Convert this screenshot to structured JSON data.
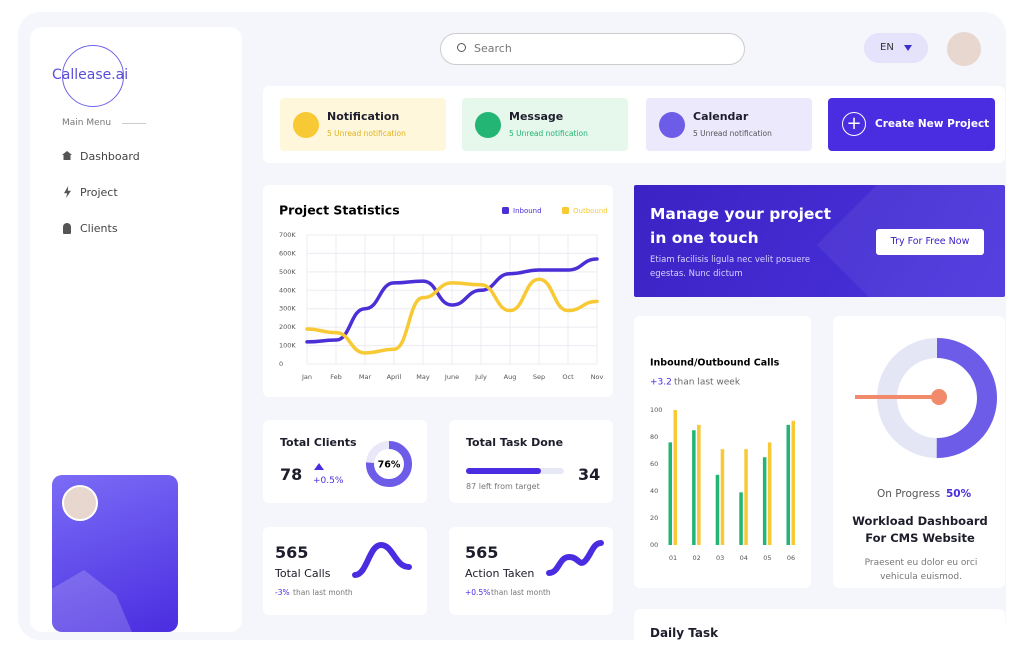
{
  "sidebar": {
    "brand": "Callease.ai",
    "menu_title": "Main Menu",
    "menu": [
      "Dashboard",
      "Project",
      "Clients"
    ]
  },
  "topbar": {
    "search_placeholder": "Search",
    "language": "EN"
  },
  "notifications": [
    {
      "title": "Notification",
      "subtitle": "5 Unread notification"
    },
    {
      "title": "Message",
      "subtitle": "5 Unread notification"
    },
    {
      "title": "Calendar",
      "subtitle": "5 Unread notification"
    }
  ],
  "create_button": "Create New Project",
  "project_statistics": {
    "type": "line",
    "title": "Project Statistics",
    "categories": [
      "Jan",
      "Feb",
      "Mar",
      "April",
      "May",
      "June",
      "July",
      "Aug",
      "Sep",
      "Oct",
      "Nov"
    ],
    "series": [
      {
        "name": "Inbound",
        "color": "#4b2fd6",
        "values": [
          120000,
          130000,
          300000,
          440000,
          450000,
          320000,
          400000,
          490000,
          510000,
          510000,
          570000
        ]
      },
      {
        "name": "Outbound",
        "color": "#f7c934",
        "values": [
          190000,
          170000,
          60000,
          80000,
          360000,
          440000,
          430000,
          290000,
          460000,
          290000,
          340000
        ]
      }
    ],
    "ylim": [
      0,
      700000
    ],
    "yticks": [
      0,
      {
        "value": 100000,
        "label": "100K"
      },
      {
        "value": 200000,
        "label": "200K"
      },
      {
        "value": 300000,
        "label": "300K"
      },
      {
        "value": 400000,
        "label": "400K"
      },
      {
        "value": 500000,
        "label": "500K"
      },
      {
        "value": 600000,
        "label": "600K"
      },
      {
        "value": 700000,
        "label": "700K"
      }
    ],
    "grid": true
  },
  "banner": {
    "title": "Manage your project in one touch",
    "text": "Etiam facilisis ligula nec velit posuere egestas. Nunc dictum",
    "button": "Try For Free Now"
  },
  "total_clients": {
    "title": "Total Clients",
    "value": 78,
    "change": "+0.5%",
    "percent": 76,
    "percent_label": "76%"
  },
  "total_task": {
    "title": "Total Task Done",
    "value": 34,
    "note": "87 left from target"
  },
  "total_calls": {
    "value": 565,
    "label": "Total Calls",
    "change": "-3%",
    "note": "than last month"
  },
  "action_taken": {
    "value": 565,
    "label": "Action Taken",
    "change": "+0.5%",
    "note": "than last month"
  },
  "calls_chart": {
    "type": "bar",
    "title": "Inbound/Outbound Calls",
    "change": "+3.2",
    "subtitle": "than last week",
    "categories": [
      "01",
      "02",
      "03",
      "04",
      "05",
      "06"
    ],
    "series": [
      {
        "color": "#22b573",
        "values": [
          76,
          85,
          52,
          39,
          65,
          89
        ]
      },
      {
        "color": "#f7c934",
        "values": [
          100,
          89,
          71,
          71,
          76,
          92
        ]
      }
    ],
    "ylim": [
      0,
      100
    ],
    "yticks": [
      {
        "value": 0,
        "label": "00"
      },
      20,
      40,
      60,
      80,
      100
    ]
  },
  "workload": {
    "status": "On Progress",
    "percent": 50,
    "percent_label": "50%",
    "title": "Workload Dashboard For CMS Website",
    "text": "Praesent eu dolor eu orci vehicula euismod."
  },
  "daily_task": {
    "title": "Daily Task"
  }
}
